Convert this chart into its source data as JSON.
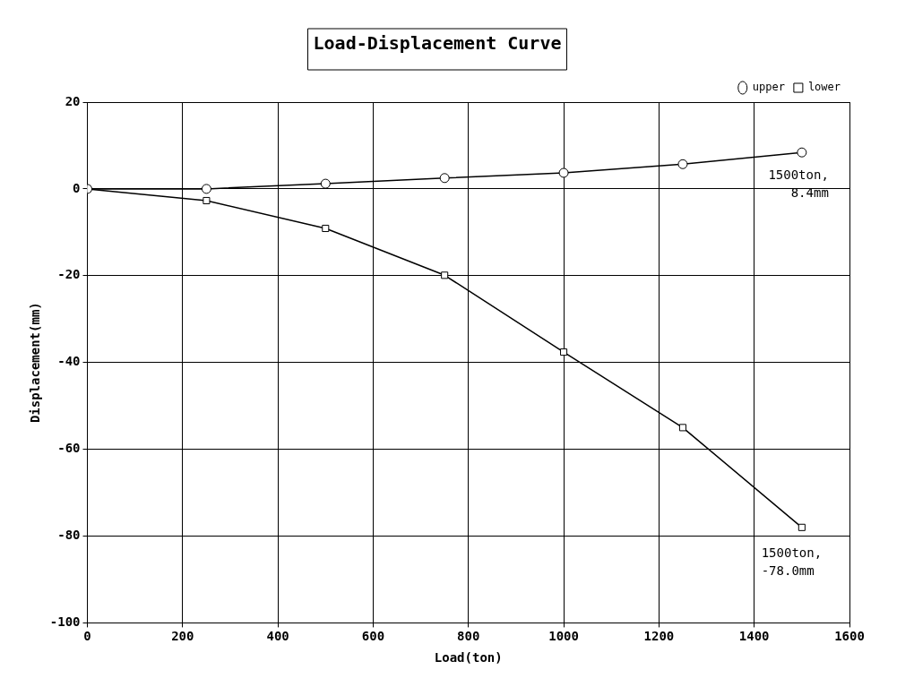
{
  "chart_data": {
    "type": "line",
    "title": "Load-Displacement Curve",
    "xlabel": "Load(ton)",
    "ylabel": "Displacement(mm)",
    "x": [
      0,
      250,
      500,
      750,
      1000,
      1250,
      1500
    ],
    "series": [
      {
        "name": "upper",
        "color": "#000000",
        "marker": "circle",
        "values": [
          0,
          0,
          1.2,
          2.5,
          3.7,
          5.7,
          8.4
        ]
      },
      {
        "name": "lower",
        "color": "#000000",
        "marker": "square",
        "values": [
          0,
          -2.7,
          -9.1,
          -19.9,
          -37.6,
          -55,
          -78
        ]
      }
    ],
    "xlim": [
      0,
      1600
    ],
    "xticks": [
      0,
      200,
      400,
      600,
      800,
      1000,
      1200,
      1400,
      1600
    ],
    "ylim": [
      -100,
      20
    ],
    "yticks": [
      -100,
      -80,
      -60,
      -40,
      -20,
      0,
      20
    ],
    "grid": true,
    "legend": "top right",
    "line_style": "solid",
    "annotations": [
      {
        "text": "1500ton,\n8.4mm",
        "x": 1500,
        "y": 8.4
      },
      {
        "text": "1500ton,\n-78.0mm",
        "x": 1500,
        "y": -78
      }
    ]
  }
}
